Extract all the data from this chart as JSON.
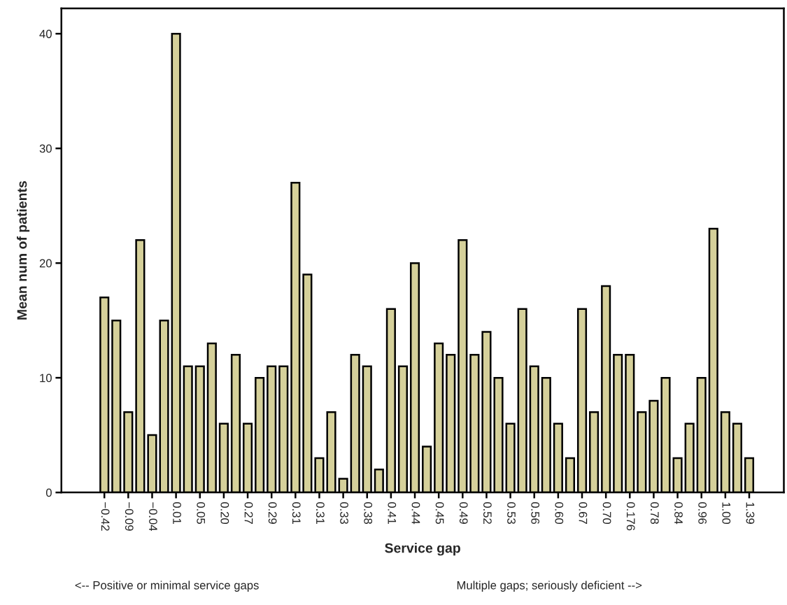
{
  "chart_data": {
    "type": "bar",
    "xlabel": "Service gap",
    "ylabel": "Mean num of patients",
    "categories": [
      "−0.42",
      null,
      "−0.09",
      null,
      "−0.04",
      null,
      "0.01",
      null,
      "0.05",
      null,
      "0.20",
      null,
      "0.27",
      null,
      "0.29",
      null,
      "0.31",
      null,
      "0.31",
      null,
      "0.33",
      null,
      "0.38",
      null,
      "0.41",
      null,
      "0.44",
      null,
      "0.45",
      null,
      "0.49",
      null,
      "0.52",
      null,
      "0.53",
      null,
      "0.56",
      null,
      "0.60",
      null,
      "0.67",
      null,
      "0.70",
      null,
      "0.176",
      null,
      "0.78",
      null,
      "0.84",
      null,
      "0.96",
      null,
      "1.00",
      null,
      "1.39"
    ],
    "values": [
      17,
      15,
      7,
      22,
      5,
      15,
      40,
      11,
      11,
      13,
      6,
      12,
      6,
      10,
      11,
      11,
      27,
      19,
      3,
      7,
      1.2,
      12,
      11,
      2,
      16,
      11,
      20,
      4,
      13,
      12,
      22,
      12,
      14,
      10,
      6,
      16,
      11,
      10,
      6,
      3,
      16,
      7,
      18,
      12,
      12,
      7,
      8,
      10,
      3,
      6,
      10,
      23,
      7,
      6,
      3
    ],
    "color": "#d5d09a",
    "ylim": [
      0,
      42.2
    ],
    "yticks": [
      0,
      10,
      20,
      30,
      40
    ],
    "grid": false,
    "annotations": [
      "<-- Positive or minimal service gaps",
      "Multiple gaps; seriously deficient -->"
    ]
  }
}
